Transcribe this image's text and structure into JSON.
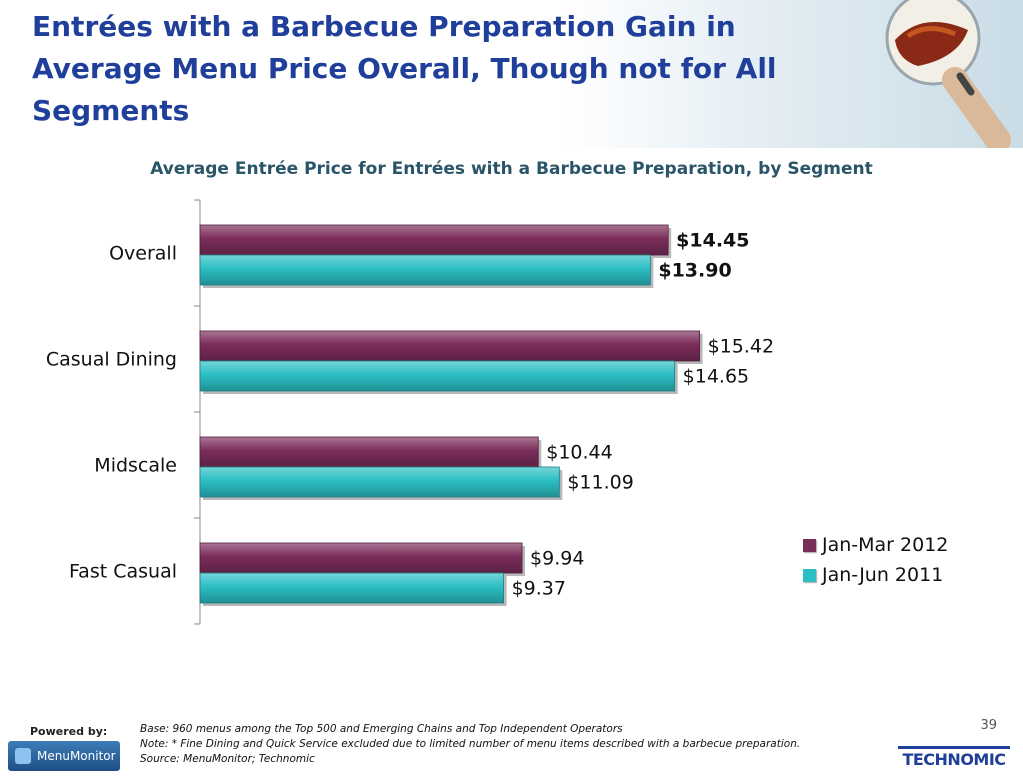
{
  "slide": {
    "title": "Entrées with a Barbecue Preparation Gain in Average Menu Price Overall, Though not for All Segments",
    "page_number": "39"
  },
  "chart_data": {
    "type": "bar",
    "orientation": "horizontal",
    "title": "Average Entrée Price for Entrées with a Barbecue Preparation, by Segment",
    "categories": [
      "Overall",
      "Casual Dining",
      "Midscale",
      "Fast Casual"
    ],
    "series": [
      {
        "name": "Jan-Mar 2012",
        "values": [
          14.45,
          15.42,
          10.44,
          9.94
        ],
        "labels": [
          "$14.45",
          "$15.42",
          "$10.44",
          "$9.94"
        ],
        "color": "#7b2d5a"
      },
      {
        "name": "Jan-Jun 2011",
        "values": [
          13.9,
          14.65,
          11.09,
          9.37
        ],
        "labels": [
          "$13.90",
          "$14.65",
          "$11.09",
          "$9.37"
        ],
        "color": "#2bbfc4"
      }
    ],
    "bold_category": "Overall",
    "xlim": [
      0,
      18
    ],
    "legend_position": "bottom-right",
    "grid": false
  },
  "footer": {
    "powered_by": "Powered by:",
    "menumonitor_logo": "MenuMonitor",
    "base": "Base: 960 menus among the Top 500 and Emerging Chains and Top Independent Operators",
    "note": "Note: * Fine Dining and Quick Service excluded due to limited number of menu items described with a barbecue preparation.",
    "source": "Source: MenuMonitor; Technomic",
    "technomic_logo": "TECHNOMIC"
  }
}
